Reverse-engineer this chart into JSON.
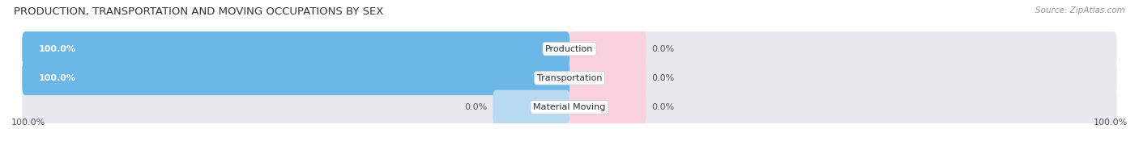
{
  "title": "PRODUCTION, TRANSPORTATION AND MOVING OCCUPATIONS BY SEX",
  "source": "Source: ZipAtlas.com",
  "categories": [
    "Production",
    "Transportation",
    "Material Moving"
  ],
  "male_values": [
    100.0,
    100.0,
    0.0
  ],
  "female_values": [
    0.0,
    0.0,
    0.0
  ],
  "male_color": "#6bb8e8",
  "female_color": "#f4a8c0",
  "male_color_light": "#b8d9f2",
  "female_color_light": "#f9d0de",
  "bar_bg_color": "#e8e8ee",
  "bar_height": 0.62,
  "title_fontsize": 9.5,
  "label_fontsize": 8,
  "source_fontsize": 7.5,
  "cat_fontsize": 8,
  "figsize": [
    14.06,
    1.96
  ],
  "dpi": 100,
  "x_left_label": "100.0%",
  "x_right_label": "100.0%",
  "title_color": "#333333",
  "text_color": "#555555",
  "female_stub": 7.0,
  "male_stub": 7.0
}
